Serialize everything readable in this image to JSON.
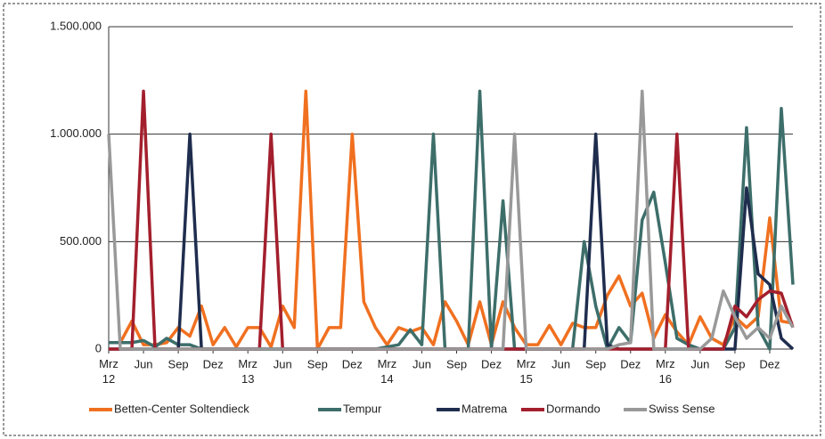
{
  "chart_data": {
    "type": "line",
    "categories": [
      "Mrz 12",
      null,
      null,
      "Jun",
      null,
      null,
      "Sep",
      null,
      null,
      "Dez",
      null,
      null,
      "Mrz 13",
      null,
      null,
      "Jun",
      null,
      null,
      "Sep",
      null,
      null,
      "Dez",
      null,
      null,
      "Mrz 14",
      null,
      null,
      "Jun",
      null,
      null,
      "Sep",
      null,
      null,
      "Dez",
      null,
      null,
      "Mrz 15",
      null,
      null,
      "Jun",
      null,
      null,
      "Sep",
      null,
      null,
      "Dez",
      null,
      null,
      "Mrz 16",
      null,
      null,
      "Jun",
      null,
      null,
      "Sep",
      null,
      null,
      "Dez",
      null,
      null
    ],
    "ylim": [
      0,
      1500000
    ],
    "yticks": [
      0,
      {
        "value": 500000,
        "label": "500.000"
      },
      {
        "value": 1000000,
        "label": "1.000.000"
      },
      {
        "value": 1500000,
        "label": "1.500.000"
      }
    ],
    "grid": true,
    "legend": "bottom",
    "series": [
      {
        "name": "Betten-Center Soltendieck",
        "color": "#f07020",
        "values": [
          30000,
          30000,
          130000,
          20000,
          20000,
          30000,
          100000,
          60000,
          200000,
          20000,
          100000,
          10000,
          100000,
          100000,
          10000,
          200000,
          100000,
          1200000,
          0,
          100000,
          100000,
          1000000,
          220000,
          100000,
          20000,
          100000,
          80000,
          100000,
          20000,
          220000,
          130000,
          20000,
          220000,
          20000,
          220000,
          100000,
          20000,
          20000,
          110000,
          20000,
          120000,
          100000,
          100000,
          250000,
          340000,
          200000,
          260000,
          50000,
          160000,
          80000,
          20000,
          150000,
          50000,
          20000,
          150000,
          100000,
          150000,
          610000,
          130000,
          120000
        ]
      },
      {
        "name": "Tempur",
        "color": "#3d6e6a",
        "values": [
          30000,
          30000,
          30000,
          40000,
          10000,
          50000,
          20000,
          20000,
          0,
          0,
          0,
          0,
          0,
          0,
          0,
          0,
          0,
          0,
          0,
          0,
          0,
          0,
          0,
          0,
          10000,
          20000,
          90000,
          20000,
          1000000,
          0,
          0,
          0,
          1200000,
          0,
          690000,
          0,
          0,
          0,
          0,
          0,
          0,
          500000,
          200000,
          0,
          100000,
          30000,
          600000,
          730000,
          400000,
          50000,
          20000,
          0,
          0,
          0,
          100000,
          1030000,
          100000,
          0,
          1120000,
          300000
        ]
      },
      {
        "name": "Matrema",
        "color": "#1f2d4e",
        "values": [
          0,
          0,
          0,
          0,
          0,
          0,
          0,
          1000000,
          0,
          0,
          0,
          0,
          0,
          0,
          0,
          0,
          0,
          0,
          0,
          0,
          0,
          0,
          0,
          0,
          0,
          0,
          0,
          0,
          0,
          0,
          0,
          0,
          0,
          0,
          0,
          0,
          0,
          0,
          0,
          0,
          0,
          0,
          1000000,
          20000,
          0,
          0,
          0,
          0,
          0,
          0,
          0,
          0,
          0,
          0,
          0,
          750000,
          350000,
          300000,
          50000,
          0
        ]
      },
      {
        "name": "Dormando",
        "color": "#a31f2d",
        "values": [
          0,
          0,
          0,
          1200000,
          0,
          0,
          0,
          0,
          0,
          0,
          0,
          0,
          0,
          0,
          1000000,
          0,
          0,
          0,
          0,
          0,
          0,
          0,
          0,
          0,
          0,
          0,
          0,
          0,
          0,
          0,
          0,
          0,
          0,
          0,
          0,
          0,
          0,
          0,
          0,
          0,
          0,
          0,
          0,
          0,
          0,
          0,
          0,
          0,
          0,
          1000000,
          0,
          0,
          0,
          0,
          200000,
          150000,
          230000,
          270000,
          260000,
          100000
        ]
      },
      {
        "name": "Swiss Sense",
        "color": "#999999",
        "values": [
          1000000,
          0,
          0,
          0,
          0,
          0,
          0,
          0,
          0,
          0,
          0,
          0,
          0,
          0,
          0,
          0,
          0,
          0,
          0,
          0,
          0,
          0,
          0,
          0,
          0,
          0,
          0,
          0,
          0,
          0,
          0,
          0,
          0,
          0,
          0,
          1000000,
          0,
          0,
          0,
          0,
          0,
          0,
          0,
          0,
          20000,
          30000,
          1200000,
          0,
          0,
          0,
          0,
          0,
          50000,
          270000,
          150000,
          50000,
          100000,
          50000,
          200000,
          100000
        ]
      }
    ]
  }
}
